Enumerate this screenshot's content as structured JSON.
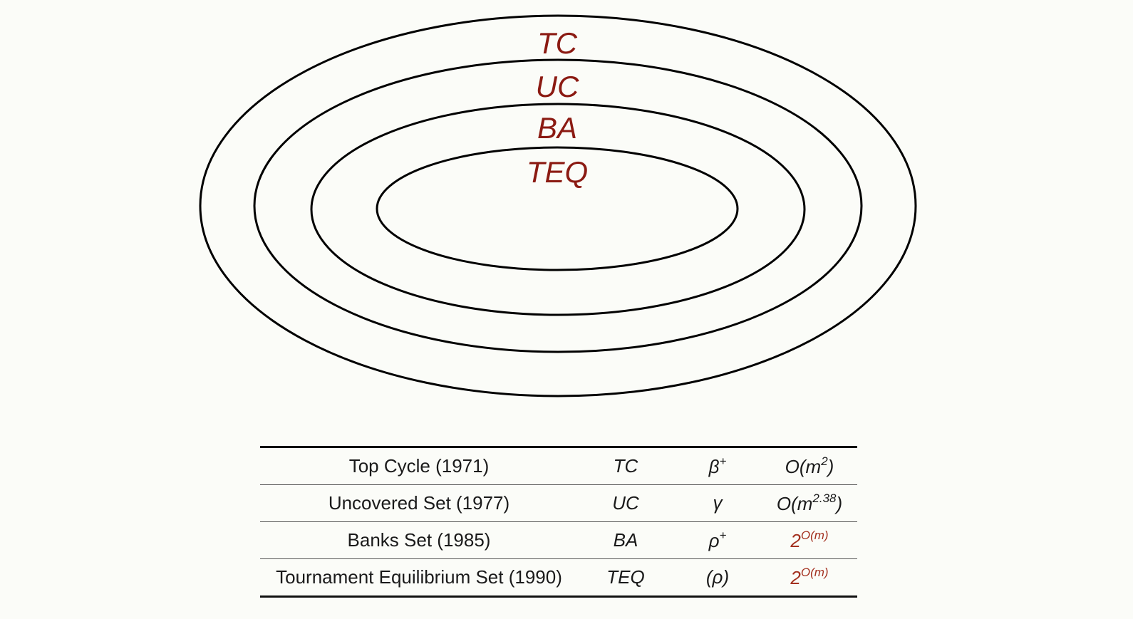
{
  "diagram": {
    "label_color": "#8b1a12",
    "stroke_color": "#000000",
    "rings": [
      {
        "label": "TC"
      },
      {
        "label": "UC"
      },
      {
        "label": "BA"
      },
      {
        "label": "TEQ"
      }
    ]
  },
  "table": {
    "accent_color": "#a3301f",
    "rows": [
      {
        "name": "Top Cycle (1971)",
        "abbr": "TC",
        "symbol_base": "β",
        "symbol_sup": "+",
        "complexity_base": "O(m",
        "complexity_sup": "2",
        "complexity_tail": ")",
        "accent": false
      },
      {
        "name": "Uncovered Set (1977)",
        "abbr": "UC",
        "symbol_base": "γ",
        "symbol_sup": "",
        "complexity_base": "O(m",
        "complexity_sup": "2.38",
        "complexity_tail": ")",
        "accent": false
      },
      {
        "name": "Banks Set (1985)",
        "abbr": "BA",
        "symbol_base": "ρ",
        "symbol_sup": "+",
        "complexity_base": "2",
        "complexity_sup": "O(m)",
        "complexity_tail": "",
        "accent": true
      },
      {
        "name": "Tournament Equilibrium Set (1990)",
        "abbr": "TEQ",
        "symbol_base": "(ρ)",
        "symbol_sup": "",
        "complexity_base": "2",
        "complexity_sup": "O(m)",
        "complexity_tail": "",
        "accent": true
      }
    ]
  }
}
